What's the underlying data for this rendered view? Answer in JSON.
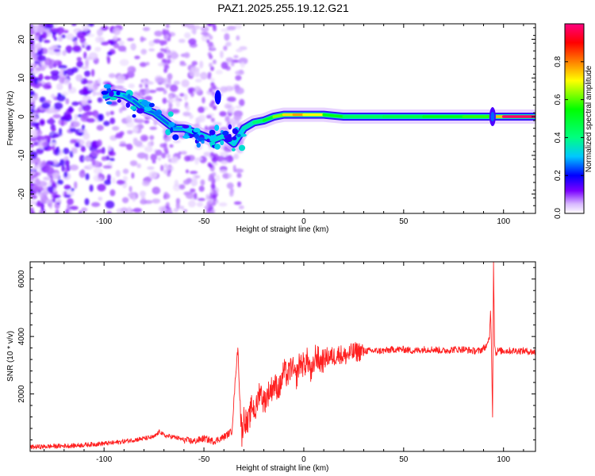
{
  "title": "PAZ1.2025.255.19.12.G21",
  "chart_data": [
    {
      "type": "heatmap",
      "title": "PAZ1.2025.255.19.12.G21",
      "xlabel": "Height of straight line (km)",
      "ylabel": "Frequency (Hz)",
      "xlim": [
        -137,
        116
      ],
      "ylim": [
        -25,
        24
      ],
      "xticks": [
        -100,
        -50,
        0,
        50,
        100
      ],
      "xtick_labels": [
        "-100",
        "-50",
        "0",
        "50",
        "100"
      ],
      "yticks": [
        -20,
        -10,
        0,
        10,
        20
      ],
      "ytick_labels": [
        "-20",
        "-10",
        "0",
        "10",
        "20"
      ],
      "colorbar": {
        "label": "Normalized spectral amplitude",
        "range": [
          0,
          1
        ],
        "ticks": [
          0.0,
          0.2,
          0.4,
          0.6,
          0.8
        ],
        "tick_labels": [
          "0.0",
          "0.2",
          "0.4",
          "0.6",
          "0.8"
        ],
        "colormap": [
          "#ffffff",
          "#d8b8ff",
          "#7a00ff",
          "#0000ff",
          "#00c8ff",
          "#00ff80",
          "#00ff00",
          "#ffff00",
          "#ff8000",
          "#ff0000",
          "#ff0080"
        ]
      },
      "ridge": {
        "x": [
          -100,
          -95,
          -90,
          -85,
          -80,
          -75,
          -70,
          -65,
          -60,
          -55,
          -50,
          -45,
          -40,
          -35,
          -30,
          -25,
          -20,
          -15,
          -10,
          -5,
          0,
          10,
          20,
          40,
          60,
          80,
          92,
          95,
          100,
          116
        ],
        "y": [
          5,
          6,
          5.5,
          4,
          2,
          1,
          -1,
          -3,
          -3,
          -4,
          -5,
          -6,
          -5,
          -7,
          -3,
          -1.5,
          -1,
          0,
          0.5,
          0.5,
          0.5,
          0.5,
          0,
          0,
          0,
          0,
          0,
          0,
          0,
          0
        ],
        "amplitude": [
          0.25,
          0.3,
          0.3,
          0.25,
          0.25,
          0.25,
          0.25,
          0.25,
          0.3,
          0.3,
          0.3,
          0.3,
          0.35,
          0.3,
          0.3,
          0.4,
          0.45,
          0.55,
          0.7,
          0.75,
          0.8,
          0.6,
          0.45,
          0.45,
          0.5,
          0.55,
          0.6,
          0.55,
          0.95,
          1.0
        ]
      },
      "grid": false
    },
    {
      "type": "line",
      "xlabel": "Height of straight line (km)",
      "ylabel": "SNR (10 * v/v)",
      "xlim": [
        -137,
        116
      ],
      "ylim": [
        0,
        6600
      ],
      "xticks": [
        -100,
        -50,
        0,
        50,
        100
      ],
      "xtick_labels": [
        "-100",
        "-50",
        "0",
        "50",
        "100"
      ],
      "yticks": [
        2000,
        4000,
        6000
      ],
      "ytick_labels": [
        "2000",
        "4000",
        "6000"
      ],
      "color": "#ff2020",
      "series": [
        {
          "x": [
            -137,
            -125,
            -115,
            -105,
            -95,
            -85,
            -80,
            -75,
            -72,
            -70,
            -65,
            -60,
            -55,
            -50,
            -45,
            -40,
            -36,
            -34,
            -33,
            -32,
            -31,
            -30,
            -28,
            -26,
            -24,
            -22,
            -20,
            -18,
            -15,
            -12,
            -10,
            -8,
            -6,
            -4,
            -2,
            0,
            2,
            4,
            6,
            8,
            10,
            12,
            15,
            18,
            20,
            25,
            30,
            35,
            40,
            45,
            50,
            55,
            60,
            65,
            70,
            75,
            80,
            85,
            88,
            90,
            92,
            93,
            93.5,
            94,
            94.5,
            95,
            95.5,
            96,
            97,
            100,
            105,
            110,
            116
          ],
          "y": [
            150,
            180,
            200,
            250,
            300,
            400,
            450,
            500,
            700,
            550,
            500,
            400,
            350,
            450,
            350,
            500,
            700,
            2800,
            3600,
            1800,
            600,
            1200,
            900,
            1600,
            1400,
            2200,
            1700,
            2000,
            2300,
            2200,
            2800,
            2600,
            3000,
            2500,
            3100,
            3000,
            3200,
            2600,
            3400,
            3100,
            3200,
            3300,
            3300,
            3400,
            3300,
            3450,
            3500,
            3500,
            3500,
            3550,
            3550,
            3500,
            3550,
            3550,
            3500,
            3550,
            3550,
            3500,
            3500,
            3600,
            3700,
            4000,
            5000,
            3500,
            1300,
            6600,
            3800,
            3400,
            3500,
            3500,
            3500,
            3500,
            3450
          ]
        }
      ],
      "grid": false
    }
  ]
}
